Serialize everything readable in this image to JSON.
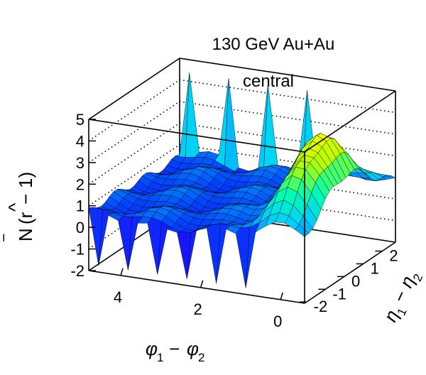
{
  "chart_data": {
    "type": "surface3d",
    "annotation": [
      "130 GeV Au+Au",
      "central"
    ],
    "xlabel": "φ1 − φ2",
    "ylabel": "η1 − η2",
    "zlabel": "N̄ (r̂ − 1)",
    "xlim": [
      -0.6,
      4.8
    ],
    "ylim": [
      -2.1,
      2.7
    ],
    "zlim": [
      -2,
      5
    ],
    "x_ticks": [
      "0",
      "2",
      "4"
    ],
    "y_ticks": [
      "-2",
      "-1",
      "0",
      "1",
      "2"
    ],
    "z_ticks": [
      "-2",
      "-1",
      "0",
      "1",
      "2",
      "3",
      "4",
      "5"
    ],
    "x_tick_values": [
      0,
      2,
      4
    ],
    "y_tick_values": [
      -2,
      -1,
      0,
      1,
      2
    ],
    "z_tick_values": [
      -2,
      -1,
      0,
      1,
      2,
      3,
      4,
      5
    ],
    "grid": "dotted on back walls",
    "colormap": [
      "#5b00b0",
      "#2400ff",
      "#0044ff",
      "#00ccff",
      "#00ffb0",
      "#b8ff00",
      "#ffff00"
    ],
    "surface_description_values": {
      "near_side_peak_phi": 0,
      "near_side_peak_height": 4.2,
      "near_side_peak_width_phi": 0.6,
      "near_side_eta_width": 1.3,
      "away_side_level": 0.6,
      "edge_spikes_phi_max": 4.6
    }
  }
}
